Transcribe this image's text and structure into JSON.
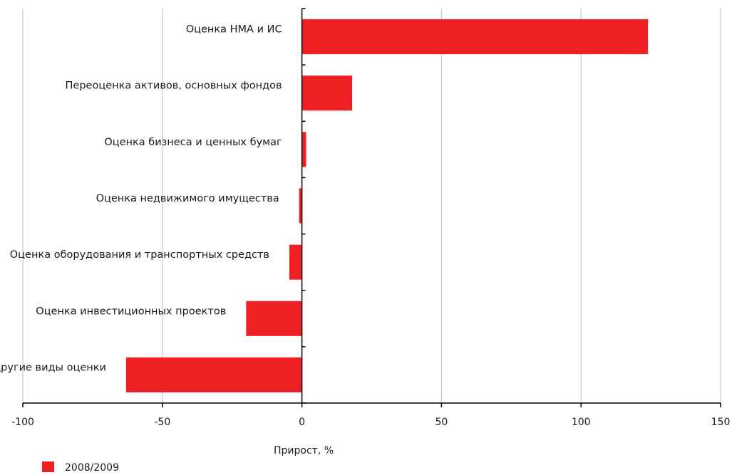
{
  "chart_data": {
    "type": "bar",
    "orientation": "horizontal",
    "categories": [
      "Оценка НМА и ИС",
      "Переоценка активов, основных фондов",
      "Оценка бизнеса и ценных бумаг",
      "Оценка недвижимого имущества",
      "Оценка оборудования и транспортных средств",
      "Оценка инвестиционных проектов",
      "Другие виды оценки"
    ],
    "series": [
      {
        "name": "2008/2009",
        "color": "#ee2024",
        "values": [
          124,
          18,
          1.5,
          -1,
          -4.5,
          -20,
          -63
        ]
      }
    ],
    "xlabel": "Прирост, %",
    "ylabel": "",
    "xlim": [
      -100,
      150
    ],
    "xticks": [
      -100,
      -50,
      0,
      50,
      100,
      150
    ],
    "xtick_labels": [
      "-100",
      "-50",
      "0",
      "50",
      "100",
      "150"
    ],
    "grid": "vertical",
    "legend": "bottom-left"
  }
}
